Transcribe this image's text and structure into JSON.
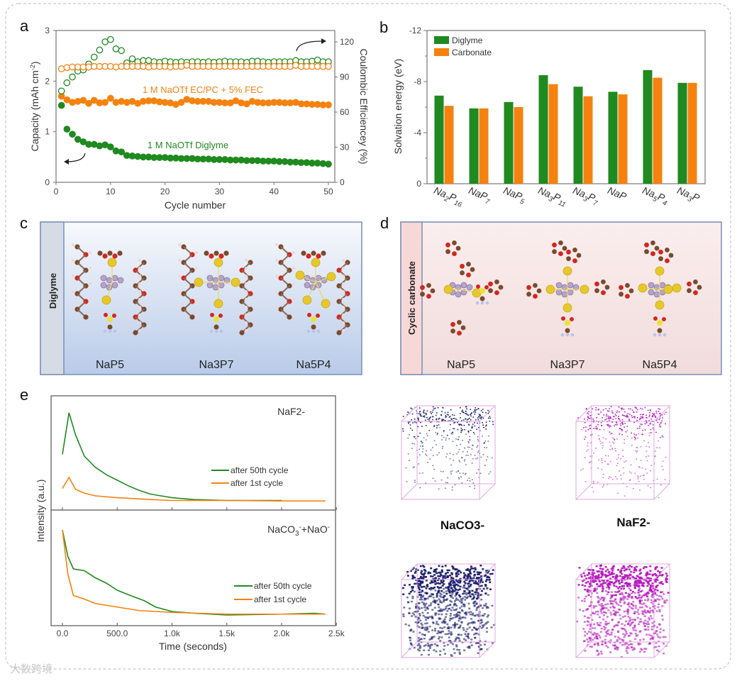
{
  "figure": {
    "panel_labels": [
      "a",
      "b",
      "c",
      "d",
      "e"
    ],
    "watermark": "大数跨境"
  },
  "colors": {
    "green": "#1f8a1f",
    "orange": "#f5820f",
    "navy": "#1b1f6b",
    "magenta": "#b418bd",
    "cube": "#e4a6e6"
  },
  "chart_data": [
    {
      "id": "a",
      "type": "scatter",
      "xlabel": "Cycle number",
      "ylabel_parts": [
        "Capacity (mAh cm",
        "-2",
        ")"
      ],
      "y2label": "Coulombic Efficiencey (%)",
      "xlim": [
        0,
        50
      ],
      "ylim": [
        0,
        3
      ],
      "y2lim": [
        0,
        130
      ],
      "xticks": [
        "0",
        "10",
        "20",
        "30",
        "40",
        "50"
      ],
      "yticks": [
        "0",
        "1",
        "2",
        "3"
      ],
      "y2ticks": [
        "0",
        "30",
        "60",
        "90",
        "120"
      ],
      "annotations": {
        "carbonate": "1 M NaOTf  EC/PC + 5% FEC",
        "diglyme": "1 M NaOTf  Diglyme"
      },
      "series": [
        {
          "name": "Diglyme capacity",
          "axis": "left",
          "marker": "filled",
          "color": "#1f8a1f",
          "values": [
            1.52,
            1.05,
            0.95,
            0.85,
            0.8,
            0.75,
            0.75,
            0.72,
            0.74,
            0.7,
            0.62,
            0.6,
            0.53,
            0.52,
            0.51,
            0.5,
            0.5,
            0.49,
            0.49,
            0.49,
            0.48,
            0.48,
            0.47,
            0.47,
            0.47,
            0.46,
            0.46,
            0.46,
            0.45,
            0.45,
            0.45,
            0.44,
            0.44,
            0.44,
            0.43,
            0.43,
            0.43,
            0.42,
            0.42,
            0.42,
            0.41,
            0.41,
            0.4,
            0.4,
            0.39,
            0.39,
            0.38,
            0.38,
            0.37,
            0.36
          ]
        },
        {
          "name": "Carbonate capacity",
          "axis": "left",
          "marker": "filled",
          "color": "#f5820f",
          "values": [
            1.7,
            1.63,
            1.58,
            1.6,
            1.62,
            1.56,
            1.62,
            1.57,
            1.58,
            1.66,
            1.58,
            1.6,
            1.58,
            1.6,
            1.56,
            1.6,
            1.61,
            1.61,
            1.59,
            1.58,
            1.57,
            1.54,
            1.58,
            1.64,
            1.61,
            1.6,
            1.6,
            1.6,
            1.58,
            1.58,
            1.57,
            1.57,
            1.61,
            1.57,
            1.55,
            1.6,
            1.58,
            1.57,
            1.57,
            1.58,
            1.58,
            1.57,
            1.57,
            1.58,
            1.55,
            1.55,
            1.54,
            1.54,
            1.53,
            1.53
          ]
        },
        {
          "name": "Diglyme CE",
          "axis": "right",
          "marker": "open",
          "color": "#1f8a1f",
          "values": [
            78,
            85,
            90,
            95,
            96,
            101,
            107,
            113,
            120,
            122,
            114,
            112.5,
            102,
            105.5,
            103,
            104,
            104,
            103,
            102.5,
            103.5,
            103,
            102.5,
            103,
            102.5,
            103,
            103,
            102.5,
            103,
            102.5,
            103,
            103.5,
            103,
            103,
            103,
            102.5,
            103.5,
            103.5,
            103,
            102.5,
            103,
            103,
            103,
            103,
            104,
            103,
            103,
            103.5,
            104.5,
            103,
            103
          ]
        },
        {
          "name": "Carbonate CE",
          "axis": "right",
          "marker": "open",
          "color": "#f5820f",
          "values": [
            97,
            98,
            98.5,
            98.5,
            98.5,
            98.5,
            99,
            99,
            99,
            99,
            98.5,
            99,
            99,
            99,
            99,
            99,
            98.5,
            99,
            99,
            99,
            98.5,
            99,
            99,
            100,
            99,
            99,
            99,
            99,
            99,
            99,
            99,
            99,
            99,
            99,
            99,
            99,
            99,
            99,
            99,
            99,
            99,
            99,
            99,
            100,
            99,
            99,
            99,
            99,
            99,
            99
          ]
        }
      ]
    },
    {
      "id": "b",
      "type": "bar",
      "ylabel": "Solvation energy (eV)",
      "ylim": [
        0,
        -12
      ],
      "yticks": [
        "0",
        "-4",
        "-8",
        "-12"
      ],
      "categories": [
        "Na2P16",
        "NaP7",
        "NaP5",
        "Na3P11",
        "Na3P7",
        "NaP",
        "Na5P4",
        "Na3P"
      ],
      "legend": "top-left",
      "series": [
        {
          "name": "Diglyme",
          "color": "#1f8a1f",
          "values": [
            -6.9,
            -5.9,
            -6.4,
            -8.5,
            -7.6,
            -7.2,
            -8.9,
            -7.9
          ]
        },
        {
          "name": "Carbonate",
          "color": "#f5820f",
          "values": [
            -6.1,
            -5.9,
            -6.0,
            -7.8,
            -6.85,
            -7.0,
            -8.3,
            -7.9
          ]
        }
      ]
    },
    {
      "id": "e",
      "type": "line",
      "xlabel": "Time (seconds)",
      "ylabel": "Intensity (a.u.)",
      "xlim": [
        0,
        2500
      ],
      "xticks": [
        "0.0",
        "500.0",
        "1.0k",
        "1.5k",
        "2.0k",
        "2.5k"
      ],
      "subplots": [
        {
          "title": "NaF2-",
          "series": [
            {
              "name": "after 50th cycle",
              "color": "#1f8a1f",
              "points": [
                [
                  0,
                  0.55
                ],
                [
                  60,
                  1.0
                ],
                [
                  120,
                  0.76
                ],
                [
                  200,
                  0.53
                ],
                [
                  300,
                  0.41
                ],
                [
                  400,
                  0.33
                ],
                [
                  500,
                  0.27
                ],
                [
                  600,
                  0.21
                ],
                [
                  700,
                  0.16
                ],
                [
                  800,
                  0.12
                ],
                [
                  900,
                  0.1
                ],
                [
                  1000,
                  0.08
                ],
                [
                  1200,
                  0.06
                ],
                [
                  1500,
                  0.05
                ],
                [
                  1800,
                  0.05
                ],
                [
                  2000,
                  0.05
                ]
              ]
            },
            {
              "name": "after 1st cycle",
              "color": "#f5820f",
              "points": [
                [
                  0,
                  0.18
                ],
                [
                  60,
                  0.3
                ],
                [
                  120,
                  0.17
                ],
                [
                  200,
                  0.13
                ],
                [
                  300,
                  0.1
                ],
                [
                  500,
                  0.08
                ],
                [
                  800,
                  0.06
                ],
                [
                  1000,
                  0.05
                ],
                [
                  1500,
                  0.05
                ],
                [
                  2000,
                  0.045
                ],
                [
                  2400,
                  0.045
                ]
              ]
            }
          ]
        },
        {
          "title": "NaCO3-+NaO-",
          "series": [
            {
              "name": "after 50th cycle",
              "color": "#1f8a1f",
              "points": [
                [
                  0,
                  1.0
                ],
                [
                  50,
                  0.7
                ],
                [
                  100,
                  0.56
                ],
                [
                  200,
                  0.54
                ],
                [
                  300,
                  0.46
                ],
                [
                  400,
                  0.4
                ],
                [
                  500,
                  0.32
                ],
                [
                  600,
                  0.27
                ],
                [
                  750,
                  0.2
                ],
                [
                  850,
                  0.13
                ],
                [
                  1000,
                  0.08
                ],
                [
                  1200,
                  0.06
                ],
                [
                  1500,
                  0.04
                ],
                [
                  2000,
                  0.05
                ],
                [
                  2300,
                  0.06
                ],
                [
                  2400,
                  0.05
                ]
              ]
            },
            {
              "name": "after 1st cycle",
              "color": "#f5820f",
              "points": [
                [
                  0,
                  1.0
                ],
                [
                  50,
                  0.5
                ],
                [
                  100,
                  0.26
                ],
                [
                  200,
                  0.22
                ],
                [
                  300,
                  0.17
                ],
                [
                  500,
                  0.13
                ],
                [
                  700,
                  0.09
                ],
                [
                  1000,
                  0.07
                ],
                [
                  1500,
                  0.05
                ],
                [
                  2000,
                  0.05
                ],
                [
                  2400,
                  0.05
                ]
              ]
            }
          ]
        }
      ]
    }
  ],
  "panel_c": {
    "side_label": "Diglyme",
    "structures": [
      "NaP5",
      "Na3P7",
      "Na5P4"
    ]
  },
  "panel_d": {
    "side_label": "Cyclic carbonate",
    "structures": [
      "NaP5",
      "Na3P7",
      "Na5P4"
    ]
  },
  "panel_e_maps": {
    "labels": [
      "NaCO3-",
      "NaF2-"
    ]
  }
}
